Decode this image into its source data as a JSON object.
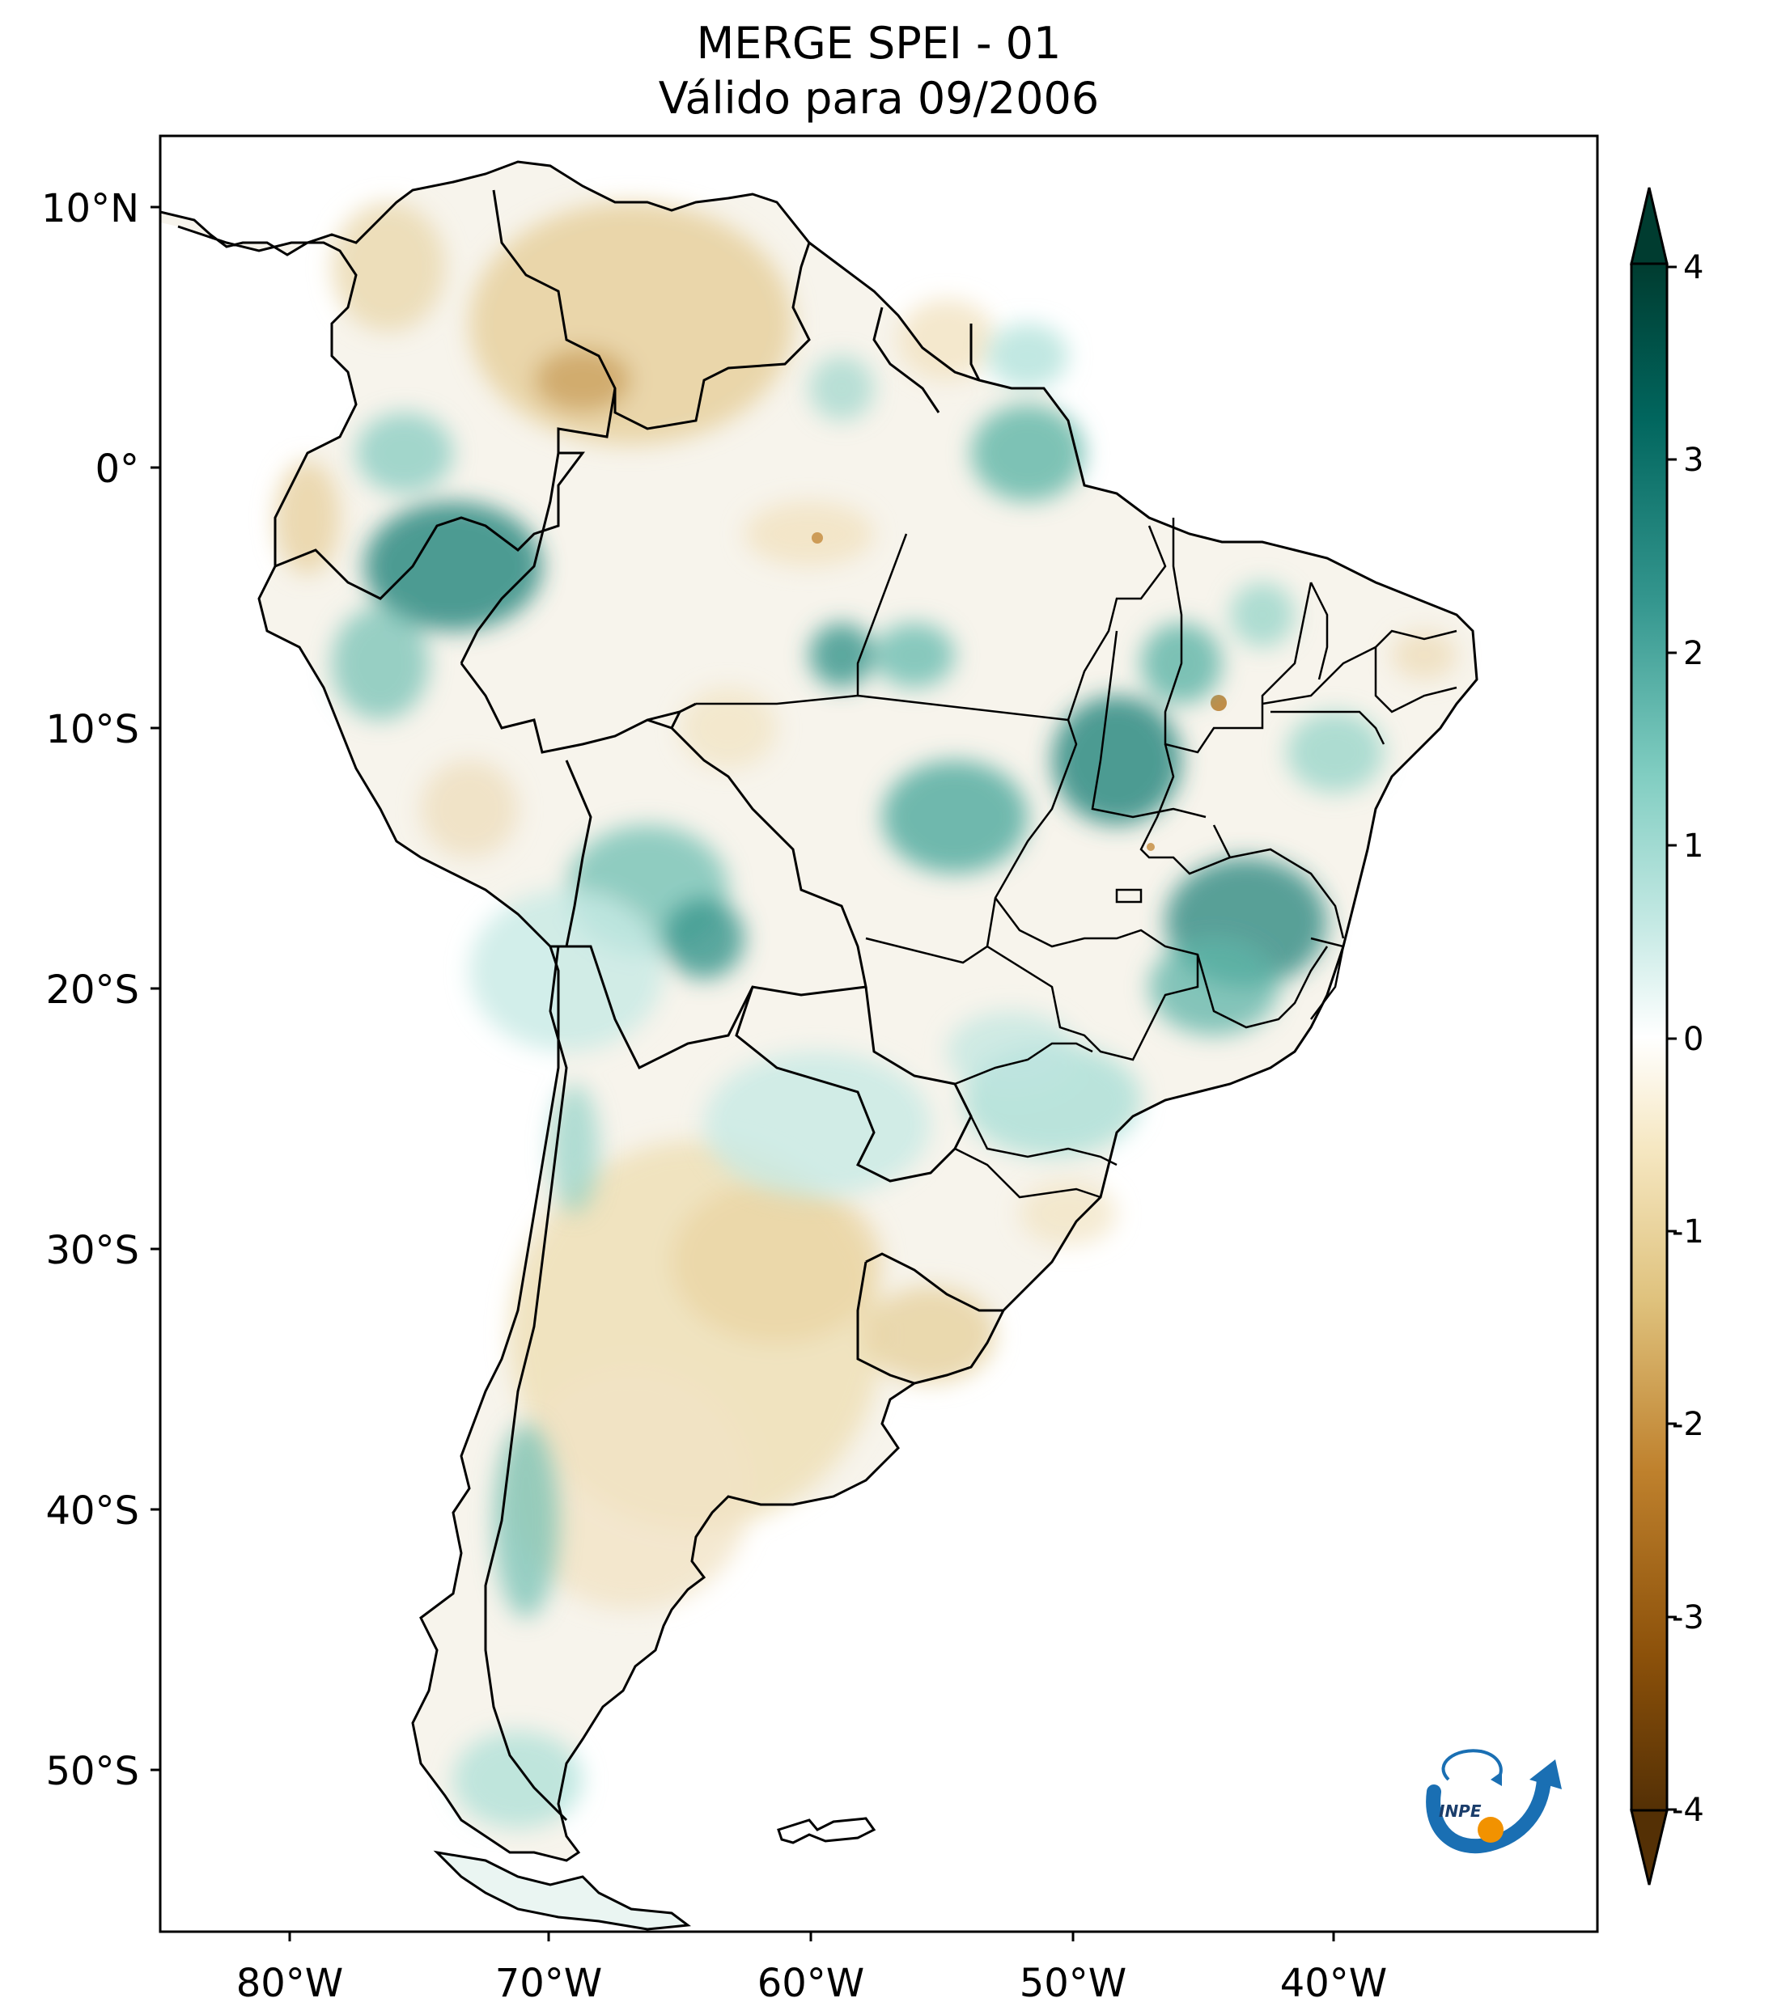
{
  "title": {
    "line1": "MERGE   SPEI - 01",
    "line2": "Válido para 09/2006"
  },
  "map": {
    "lon_range": [
      -85,
      -30
    ],
    "lat_range": [
      -56,
      13
    ],
    "lon_ticks": [
      {
        "value": -80,
        "label": "80°W"
      },
      {
        "value": -70,
        "label": "70°W"
      },
      {
        "value": -60,
        "label": "60°W"
      },
      {
        "value": -50,
        "label": "50°W"
      },
      {
        "value": -40,
        "label": "40°W"
      }
    ],
    "lat_ticks": [
      {
        "value": 10,
        "label": "10°N"
      },
      {
        "value": 0,
        "label": "0°"
      },
      {
        "value": -10,
        "label": "10°S"
      },
      {
        "value": -20,
        "label": "20°S"
      },
      {
        "value": -30,
        "label": "30°S"
      },
      {
        "value": -40,
        "label": "40°S"
      },
      {
        "value": -50,
        "label": "50°S"
      }
    ]
  },
  "colorbar": {
    "min": -4,
    "max": 4,
    "extend": "both",
    "ticks": [
      {
        "value": 4,
        "label": "4"
      },
      {
        "value": 3,
        "label": "3"
      },
      {
        "value": 2,
        "label": "2"
      },
      {
        "value": 1,
        "label": "1"
      },
      {
        "value": 0,
        "label": "0"
      },
      {
        "value": -1,
        "label": "-1"
      },
      {
        "value": -2,
        "label": "-2"
      },
      {
        "value": -3,
        "label": "-3"
      },
      {
        "value": -4,
        "label": "-4"
      }
    ],
    "colors": {
      "wettest": "#003c30",
      "very_wet": "#01665e",
      "wet": "#35978f",
      "moist": "#80cdc1",
      "slightly_moist": "#c7eae5",
      "neutral": "#f5f5f5",
      "slightly_dry": "#f6e8c3",
      "dry": "#dfc27d",
      "very_dry": "#bf812d",
      "driest": "#543005"
    }
  },
  "logo": {
    "text": "INPE",
    "color_blue": "#1a6fb3",
    "color_orange": "#f29200"
  }
}
